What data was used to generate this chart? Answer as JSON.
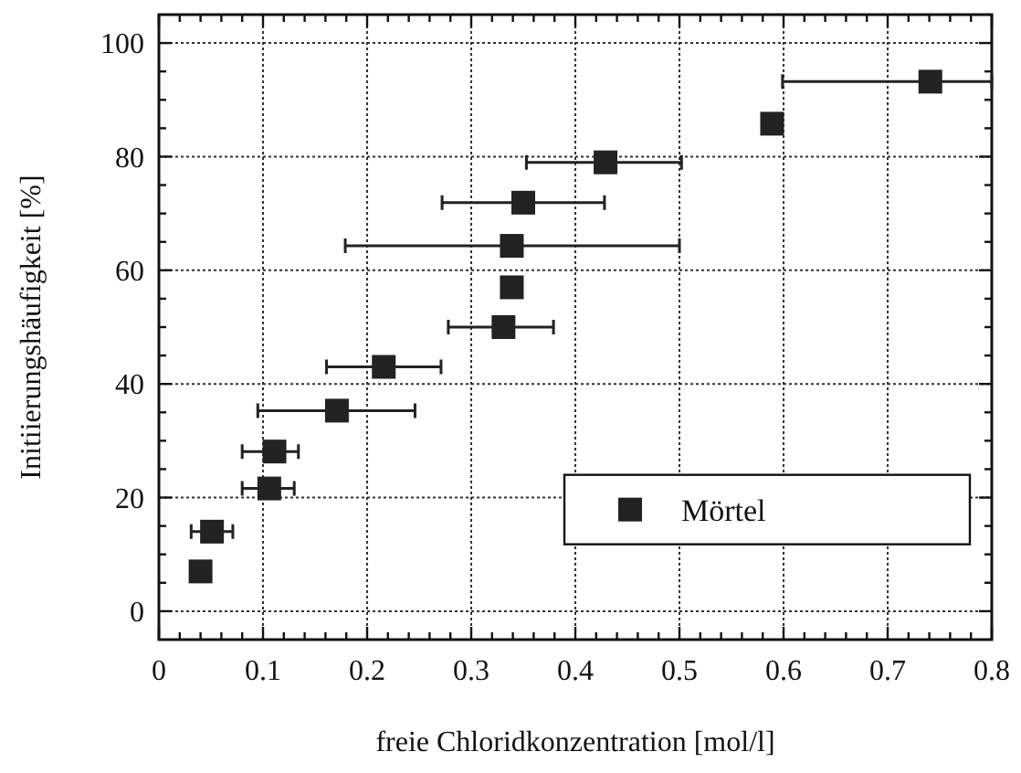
{
  "chart_data": {
    "type": "scatter",
    "xlabel": "freie Chloridkonzentration [mol/l]",
    "ylabel": "Initiierungshäufigkeit [%]",
    "xlim": [
      0,
      0.8
    ],
    "ylim": [
      -5,
      105
    ],
    "xticks": [
      0,
      {
        "value": 0.02,
        "label": null
      },
      {
        "value": 0.04,
        "label": null
      },
      {
        "value": 0.06,
        "label": null
      },
      {
        "value": 0.08,
        "label": null
      },
      0.1,
      {
        "value": 0.12,
        "label": null
      },
      {
        "value": 0.14,
        "label": null
      },
      {
        "value": 0.16,
        "label": null
      },
      {
        "value": 0.18,
        "label": null
      },
      0.2,
      {
        "value": 0.22,
        "label": null
      },
      {
        "value": 0.24,
        "label": null
      },
      {
        "value": 0.26,
        "label": null
      },
      {
        "value": 0.28,
        "label": null
      },
      0.3,
      {
        "value": 0.32,
        "label": null
      },
      {
        "value": 0.34,
        "label": null
      },
      {
        "value": 0.36,
        "label": null
      },
      {
        "value": 0.38,
        "label": null
      },
      0.4,
      {
        "value": 0.42,
        "label": null
      },
      {
        "value": 0.44,
        "label": null
      },
      {
        "value": 0.46,
        "label": null
      },
      {
        "value": 0.48,
        "label": null
      },
      0.5,
      {
        "value": 0.52,
        "label": null
      },
      {
        "value": 0.54,
        "label": null
      },
      {
        "value": 0.56,
        "label": null
      },
      {
        "value": 0.58,
        "label": null
      },
      0.6,
      {
        "value": 0.62,
        "label": null
      },
      {
        "value": 0.64,
        "label": null
      },
      {
        "value": 0.66,
        "label": null
      },
      {
        "value": 0.68,
        "label": null
      },
      0.7,
      {
        "value": 0.72,
        "label": null
      },
      {
        "value": 0.74,
        "label": null
      },
      {
        "value": 0.76,
        "label": null
      },
      {
        "value": 0.78,
        "label": null
      },
      0.8
    ],
    "yticks": [
      0,
      {
        "value": 5,
        "label": null
      },
      {
        "value": 10,
        "label": null
      },
      {
        "value": 15,
        "label": null
      },
      20,
      {
        "value": 25,
        "label": null
      },
      {
        "value": 30,
        "label": null
      },
      {
        "value": 35,
        "label": null
      },
      40,
      {
        "value": 45,
        "label": null
      },
      {
        "value": 50,
        "label": null
      },
      {
        "value": 55,
        "label": null
      },
      60,
      {
        "value": 65,
        "label": null
      },
      {
        "value": 70,
        "label": null
      },
      {
        "value": 75,
        "label": null
      },
      80,
      {
        "value": 85,
        "label": null
      },
      {
        "value": 90,
        "label": null
      },
      {
        "value": 95,
        "label": null
      },
      100
    ],
    "grid": true,
    "legend": "bottom right",
    "marker": "square",
    "series": [
      {
        "name": "Mörtel",
        "color": "#222222",
        "x": [
          0.04,
          0.051,
          0.106,
          0.111,
          0.171,
          0.216,
          0.331,
          0.339,
          0.339,
          0.35,
          0.429,
          0.589,
          0.741
        ],
        "values": [
          7,
          14,
          21.6,
          28.1,
          35.3,
          43,
          50,
          57,
          64.3,
          71.9,
          79,
          85.8,
          93.2
        ],
        "xerrors": [
          null,
          [
            0.031,
            0.071
          ],
          [
            0.08,
            0.13
          ],
          [
            0.08,
            0.134
          ],
          [
            0.095,
            0.246
          ],
          [
            0.161,
            0.271
          ],
          [
            0.278,
            0.379
          ],
          null,
          [
            0.179,
            0.5
          ],
          [
            0.272,
            0.428
          ],
          [
            0.353,
            0.502
          ],
          null,
          [
            0.599,
            0.8
          ]
        ]
      }
    ]
  }
}
